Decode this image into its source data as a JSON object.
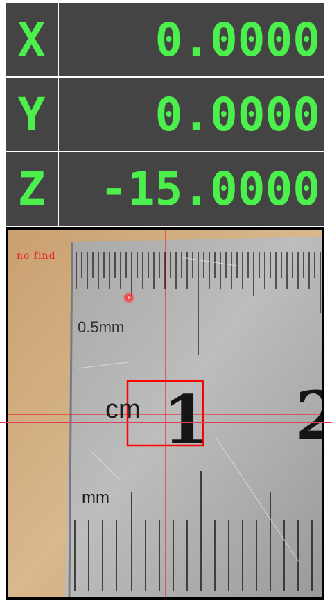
{
  "dro": {
    "x": {
      "axis": "X",
      "value": "0.0000"
    },
    "y": {
      "axis": "Y",
      "value": "0.0000"
    },
    "z": {
      "axis": "Z",
      "value": "-15.0000"
    }
  },
  "camera": {
    "status": "no find",
    "ruler_labels": {
      "half_mm": "0.5mm",
      "cm": "cm",
      "one": "1",
      "two": "2",
      "mm": "mm"
    }
  },
  "colors": {
    "dro_background": "#444444",
    "dro_text": "#4cf04c",
    "crosshair": "#ff0000",
    "target_box": "#ff0000"
  }
}
